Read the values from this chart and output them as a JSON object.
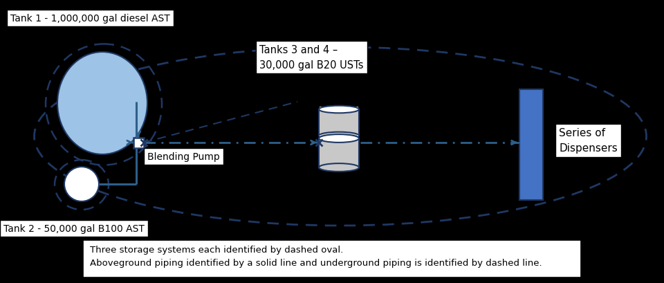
{
  "bg_color": "#000000",
  "blue_dark": "#1F3864",
  "blue_pipe": "#2E5F8A",
  "blue_light": "#9DC3E6",
  "blue_dispenser": "#4472C4",
  "gray_cyl": "#C8C8C8",
  "white": "#FFFFFF",
  "label_tank1": "Tank 1 - 1,000,000 gal diesel AST",
  "label_tank2": "Tank 2 - 50,000 gal B100 AST",
  "label_tanks34": "Tanks 3 and 4 –\n30,000 gal B20 USTs",
  "label_pump": "Blending Pump",
  "label_dispensers": "Series of\nDispensers",
  "label_fn1": "Three storage systems each identified by dashed oval.",
  "label_fn2": "Aboveground piping identified by a solid line and underground piping is identified by dashed line.",
  "dash_style": [
    6,
    4
  ],
  "underground_style": [
    6,
    3,
    1,
    3
  ]
}
